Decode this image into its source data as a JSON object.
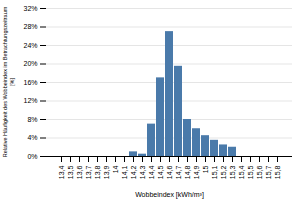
{
  "chart_data": {
    "type": "bar",
    "categories": [
      "13,4",
      "13,5",
      "13,6",
      "13,7",
      "13,8",
      "13,9",
      "14",
      "14,1",
      "14,2",
      "14,3",
      "14,4",
      "14,5",
      "14,6",
      "14,7",
      "14,8",
      "14,9",
      "15",
      "15,1",
      "15,2",
      "15,3",
      "15,4",
      "15,5",
      "15,6",
      "15,7",
      "15,8"
    ],
    "values": [
      0,
      0,
      0,
      0,
      0,
      0,
      0,
      0,
      1.0,
      0.5,
      7.0,
      17.0,
      27.0,
      19.5,
      8.0,
      6.0,
      4.5,
      3.5,
      2.5,
      2.0,
      0,
      0,
      0,
      0,
      0
    ],
    "color": "#4a7aaa",
    "xlabel": "Wobbeindex [kWh/m³]",
    "ylabel": "Relative Häufigkeit des Wobbeindex im Betrachtungszeitraum\n[%]",
    "ylim": [
      0,
      32
    ],
    "yticks": [
      {
        "value": 0,
        "label": "0%"
      },
      {
        "value": 4,
        "label": "4%"
      },
      {
        "value": 8,
        "label": "8%"
      },
      {
        "value": 12,
        "label": "12%"
      },
      {
        "value": 16,
        "label": "16%"
      },
      {
        "value": 20,
        "label": "20%"
      },
      {
        "value": 24,
        "label": "24%"
      },
      {
        "value": 28,
        "label": "28%"
      },
      {
        "value": 32,
        "label": "32%"
      }
    ],
    "grid": true
  }
}
